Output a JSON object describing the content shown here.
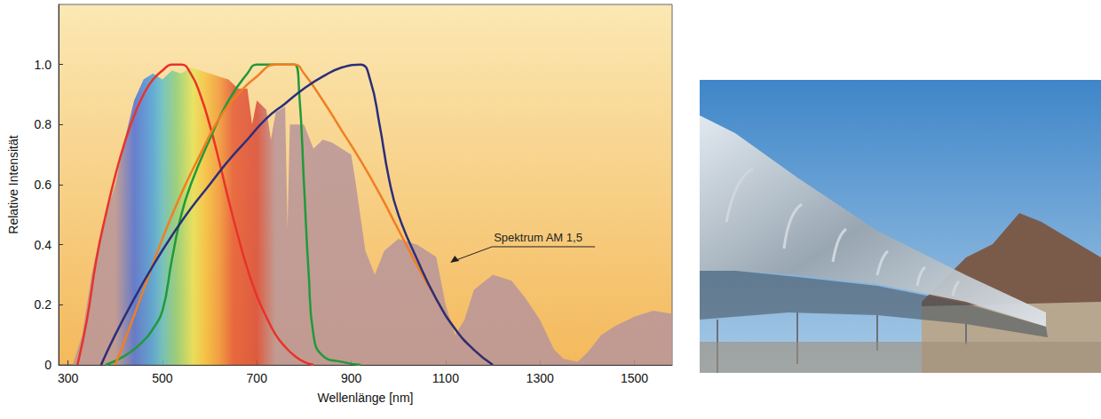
{
  "chart_data": {
    "type": "line",
    "x_label": "Wellenlänge [nm]",
    "y_label": "Relative Intensität",
    "xlim": [
      280,
      1580
    ],
    "xticks": [
      300,
      500,
      700,
      900,
      1100,
      1300,
      1500
    ],
    "ylim": [
      0,
      1.2
    ],
    "yticks": [
      0,
      0.2,
      0.4,
      0.6,
      0.8,
      {
        "value": 1,
        "label": "1.0"
      }
    ],
    "grid": false,
    "annotations": [
      {
        "text": "Spektrum AM 1,5",
        "x": 1110,
        "y": 0.34
      }
    ],
    "series": [
      {
        "type": "area",
        "color": "#b8959a",
        "x": [
          310,
          330,
          350,
          370,
          400,
          420,
          440,
          460,
          480,
          500,
          520,
          540,
          560,
          580,
          600,
          620,
          640,
          660,
          680,
          690,
          700,
          720,
          730,
          740,
          760,
          765,
          770,
          800,
          820,
          840,
          860,
          880,
          900,
          910,
          930,
          950,
          970,
          1000,
          1040,
          1080,
          1100,
          1120,
          1140,
          1160,
          1200,
          1240,
          1270,
          1300,
          1330,
          1350,
          1380,
          1400,
          1430,
          1460,
          1500,
          1540,
          1580
        ],
        "values": [
          0,
          0.1,
          0.3,
          0.45,
          0.6,
          0.75,
          0.88,
          0.95,
          0.97,
          0.95,
          0.98,
          0.97,
          0.99,
          0.98,
          0.97,
          0.96,
          0.95,
          0.92,
          0.92,
          0.8,
          0.88,
          0.85,
          0.75,
          0.84,
          0.86,
          0.45,
          0.8,
          0.8,
          0.72,
          0.75,
          0.74,
          0.72,
          0.7,
          0.6,
          0.38,
          0.3,
          0.38,
          0.42,
          0.4,
          0.36,
          0.2,
          0.1,
          0.15,
          0.25,
          0.3,
          0.28,
          0.22,
          0.15,
          0.05,
          0.02,
          0.01,
          0.04,
          0.1,
          0.13,
          0.16,
          0.18,
          0.17
        ]
      },
      {
        "type": "line",
        "color": "#e8332a",
        "x": [
          320,
          340,
          360,
          380,
          400,
          420,
          440,
          460,
          480,
          500,
          520,
          540,
          560,
          580,
          600,
          620,
          640,
          660,
          680,
          700,
          720,
          740,
          760,
          780,
          800,
          820
        ],
        "values": [
          0,
          0.15,
          0.35,
          0.5,
          0.63,
          0.74,
          0.83,
          0.9,
          0.95,
          0.98,
          1.0,
          1.0,
          0.97,
          0.9,
          0.8,
          0.68,
          0.55,
          0.43,
          0.32,
          0.23,
          0.16,
          0.1,
          0.06,
          0.03,
          0.01,
          0
        ]
      },
      {
        "type": "line",
        "color": "#1f9a3a",
        "x": [
          380,
          420,
          460,
          480,
          500,
          520,
          540,
          560,
          600,
          640,
          680,
          700,
          740,
          780,
          790,
          800,
          810,
          820,
          840,
          880,
          920
        ],
        "values": [
          0,
          0.03,
          0.08,
          0.12,
          0.18,
          0.35,
          0.5,
          0.6,
          0.75,
          0.88,
          0.97,
          1.0,
          1.0,
          1.0,
          0.9,
          0.6,
          0.3,
          0.1,
          0.03,
          0.01,
          0
        ]
      },
      {
        "type": "line",
        "color": "#f07f22",
        "x": [
          400,
          420,
          460,
          500,
          540,
          580,
          620,
          660,
          700,
          740,
          780,
          800,
          840,
          880,
          920,
          960,
          1000,
          1040,
          1080,
          1120,
          1160,
          1200
        ],
        "values": [
          0,
          0.08,
          0.25,
          0.42,
          0.57,
          0.7,
          0.82,
          0.9,
          0.96,
          1.0,
          1.0,
          0.97,
          0.88,
          0.78,
          0.68,
          0.57,
          0.45,
          0.33,
          0.22,
          0.12,
          0.05,
          0
        ]
      },
      {
        "type": "line",
        "color": "#2b2f7a",
        "x": [
          370,
          400,
          440,
          480,
          520,
          560,
          600,
          640,
          680,
          720,
          760,
          800,
          840,
          880,
          920,
          940,
          960,
          980,
          1000,
          1040,
          1080,
          1120,
          1160,
          1200
        ],
        "values": [
          0,
          0.1,
          0.22,
          0.33,
          0.43,
          0.52,
          0.6,
          0.68,
          0.75,
          0.82,
          0.87,
          0.92,
          0.96,
          0.99,
          1.0,
          0.95,
          0.8,
          0.62,
          0.5,
          0.35,
          0.22,
          0.12,
          0.05,
          0
        ]
      }
    ]
  }
}
